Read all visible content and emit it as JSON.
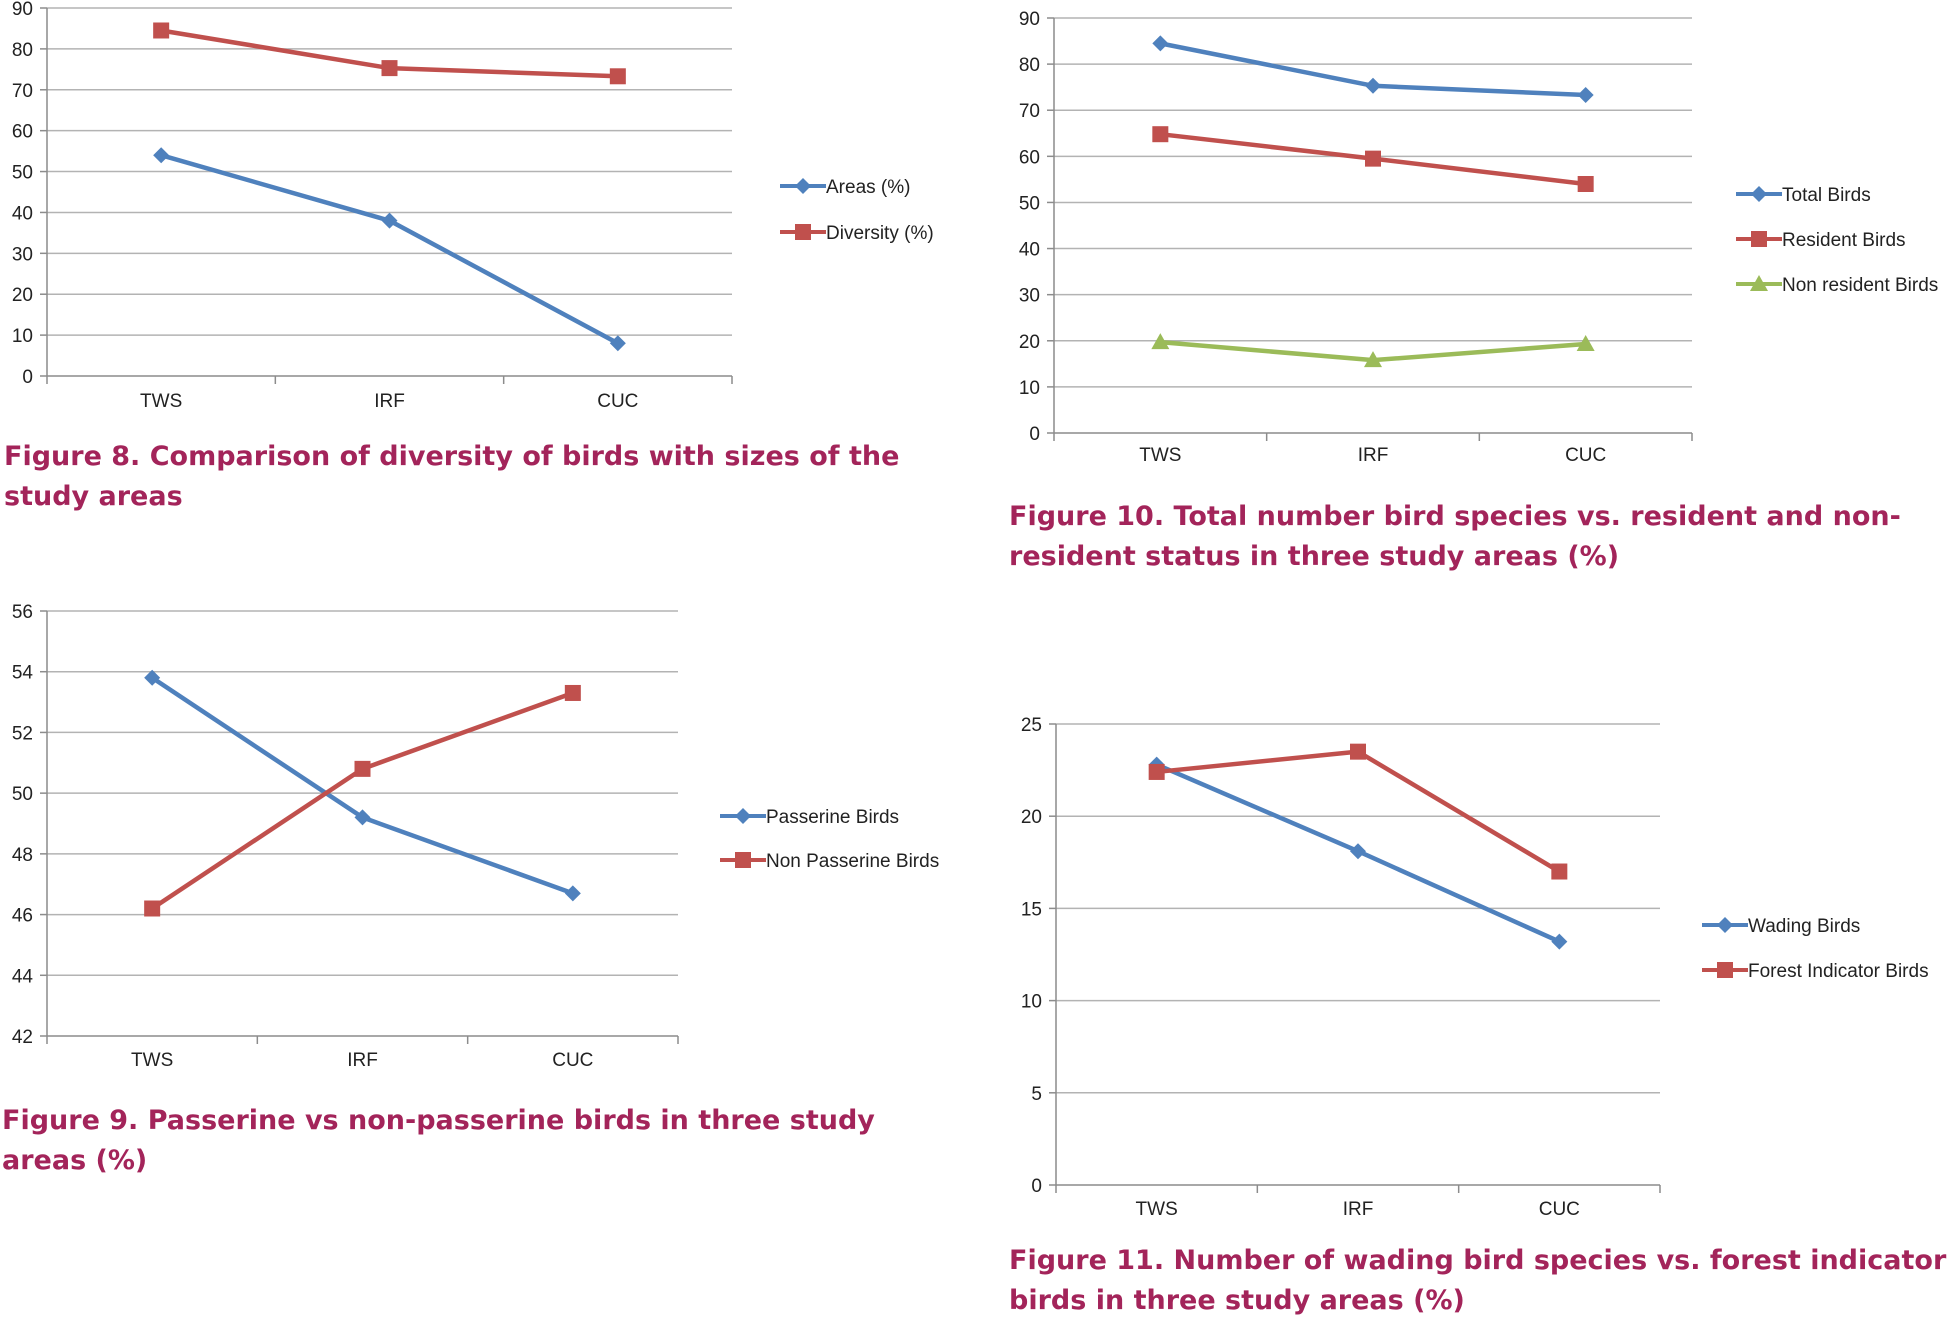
{
  "colors": {
    "blue": "#4f81bd",
    "red": "#c0504d",
    "green": "#9bbb59",
    "grid": "#b3b3b3",
    "axis": "#8c8c8c",
    "caption": "#a3245a"
  },
  "chart_data": [
    {
      "id": "fig8",
      "type": "line",
      "categories": [
        "TWS",
        "IRF",
        "CUC"
      ],
      "series": [
        {
          "name": "Areas (%)",
          "values": [
            54,
            38,
            8
          ],
          "color": "#4f81bd",
          "marker": "diamond"
        },
        {
          "name": "Diversity (%)",
          "values": [
            84.5,
            75.3,
            73.3
          ],
          "color": "#c0504d",
          "marker": "square"
        }
      ],
      "ylim": [
        0,
        90
      ],
      "yticks": [
        0,
        10,
        20,
        30,
        40,
        50,
        60,
        70,
        80,
        90
      ],
      "grid": true,
      "legend": "right",
      "caption": "Figure 8. Comparison of diversity of birds with sizes of the study areas"
    },
    {
      "id": "fig9",
      "type": "line",
      "categories": [
        "TWS",
        "IRF",
        "CUC"
      ],
      "series": [
        {
          "name": "Passerine Birds",
          "values": [
            53.8,
            49.2,
            46.7
          ],
          "color": "#4f81bd",
          "marker": "diamond"
        },
        {
          "name": "Non Passerine Birds",
          "values": [
            46.2,
            50.8,
            53.3
          ],
          "color": "#c0504d",
          "marker": "square"
        }
      ],
      "ylim": [
        42,
        56
      ],
      "yticks": [
        42,
        44,
        46,
        48,
        50,
        52,
        54,
        56
      ],
      "grid": true,
      "legend": "right",
      "caption": "Figure 9. Passerine vs non-passerine birds in three study areas (%)"
    },
    {
      "id": "fig10",
      "type": "line",
      "categories": [
        "TWS",
        "IRF",
        "CUC"
      ],
      "series": [
        {
          "name": "Total Birds",
          "values": [
            84.5,
            75.3,
            73.3
          ],
          "color": "#4f81bd",
          "marker": "diamond"
        },
        {
          "name": "Resident Birds",
          "values": [
            64.8,
            59.5,
            54
          ],
          "color": "#c0504d",
          "marker": "square"
        },
        {
          "name": "Non resident Birds",
          "values": [
            19.7,
            15.8,
            19.3
          ],
          "color": "#9bbb59",
          "marker": "triangle"
        }
      ],
      "ylim": [
        0,
        90
      ],
      "yticks": [
        0,
        10,
        20,
        30,
        40,
        50,
        60,
        70,
        80,
        90
      ],
      "grid": true,
      "legend": "right",
      "caption": "Figure 10. Total number bird species vs. resident and non-resident status in three study areas (%)"
    },
    {
      "id": "fig11",
      "type": "line",
      "categories": [
        "TWS",
        "IRF",
        "CUC"
      ],
      "series": [
        {
          "name": "Wading Birds",
          "values": [
            22.8,
            18.1,
            13.2
          ],
          "color": "#4f81bd",
          "marker": "diamond"
        },
        {
          "name": "Forest Indicator Birds",
          "values": [
            22.4,
            23.5,
            17
          ],
          "color": "#c0504d",
          "marker": "square"
        }
      ],
      "ylim": [
        0,
        25
      ],
      "yticks": [
        0,
        5,
        10,
        15,
        20,
        25
      ],
      "grid": true,
      "legend": "right",
      "caption": "Figure 11. Number of wading bird species vs. forest indicator birds in three study areas (%)"
    }
  ]
}
